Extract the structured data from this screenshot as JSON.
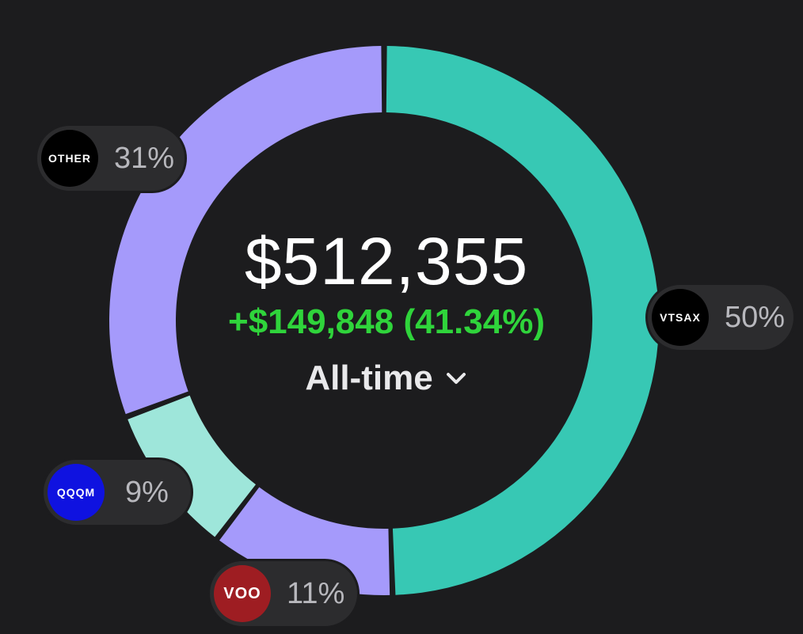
{
  "header": {
    "total_value": "$512,355",
    "change": "+$149,848 (41.34%)",
    "period": "All-time"
  },
  "colors": {
    "background": "#1c1c1e",
    "pill_background": "#2c2c2e",
    "gain_green": "#2fd43b"
  },
  "holdings": [
    {
      "ticker": "VTSAX",
      "percent_label": "50%",
      "badge_color": "#000000",
      "segment_color": "#37c8b4"
    },
    {
      "ticker": "VOO",
      "percent_label": "11%",
      "badge_color": "#9e1d22",
      "segment_color": "#a59afb"
    },
    {
      "ticker": "QQQM",
      "percent_label": "9%",
      "badge_color": "#0f12e0",
      "segment_color": "#9ee6da"
    },
    {
      "ticker": "OTHER",
      "percent_label": "31%",
      "badge_color": "#000000",
      "segment_color": "#a59afb"
    }
  ],
  "chart_data": {
    "type": "pie",
    "style": "donut",
    "categories": [
      "VTSAX",
      "VOO",
      "QQQM",
      "OTHER"
    ],
    "values": [
      50,
      11,
      9,
      31
    ],
    "title": "",
    "center_text": "$512,355"
  }
}
